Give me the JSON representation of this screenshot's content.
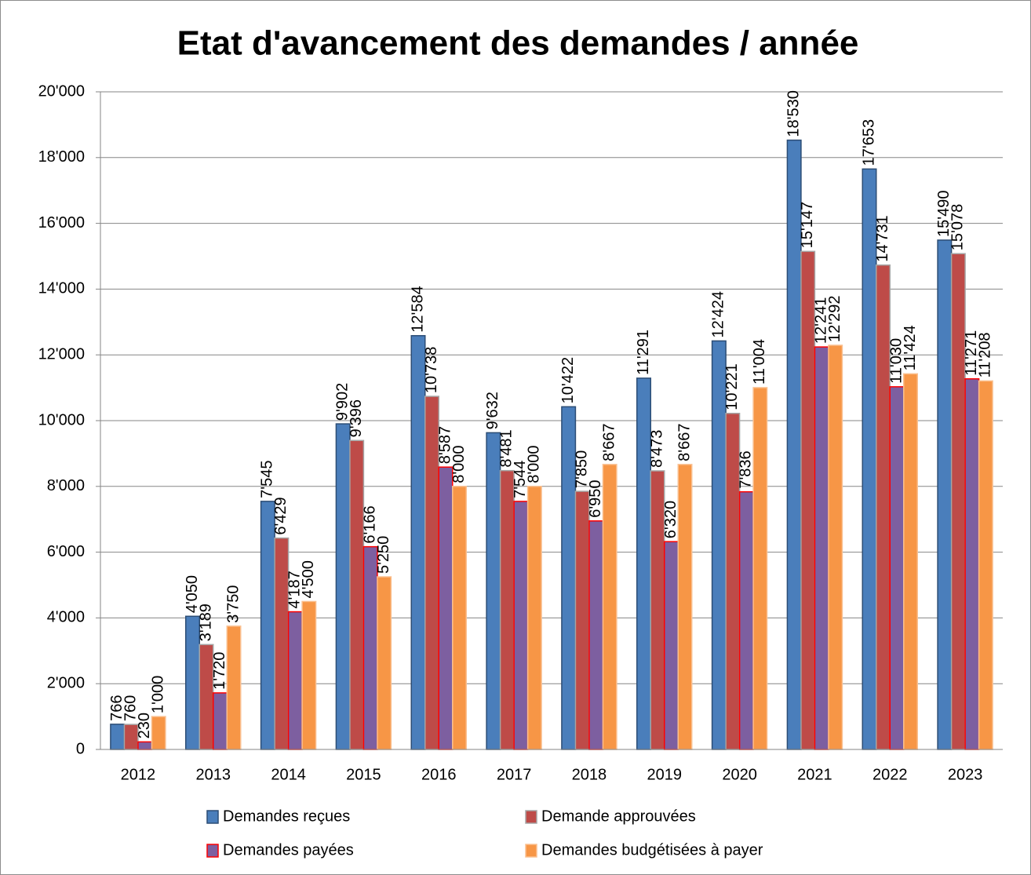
{
  "chart_data": {
    "type": "bar",
    "title": "Etat d'avancement des demandes / année",
    "categories": [
      "2012",
      "2013",
      "2014",
      "2015",
      "2016",
      "2017",
      "2018",
      "2019",
      "2020",
      "2021",
      "2022",
      "2023"
    ],
    "series": [
      {
        "name": "Demandes reçues",
        "color": "#4a7ebb",
        "border": "#2c4d75",
        "values": [
          766,
          4050,
          7545,
          9902,
          12584,
          9632,
          10422,
          11291,
          12424,
          18530,
          17653,
          15490
        ],
        "value_labels": [
          "766",
          "4'050",
          "7'545",
          "9'902",
          "12'584",
          "9'632",
          "10'422",
          "11'291",
          "12'424",
          "18'530",
          "17'653",
          "15'490"
        ]
      },
      {
        "name": "Demande approuvées",
        "color": "#be4b48",
        "border": "#a5a5a5",
        "values": [
          760,
          3189,
          6429,
          9396,
          10738,
          8481,
          7850,
          8473,
          10221,
          15147,
          14731,
          15078
        ],
        "value_labels": [
          "760",
          "3'189",
          "6'429",
          "9'396",
          "10'738",
          "8'481",
          "7'850",
          "8'473",
          "10'221",
          "15'147",
          "14'731",
          "15'078"
        ]
      },
      {
        "name": "Demandes payées",
        "color": "#7d5fa0",
        "border": "#ff0000",
        "values": [
          230,
          1720,
          4187,
          6166,
          8587,
          7544,
          6950,
          6320,
          7836,
          12241,
          11030,
          11271
        ],
        "value_labels": [
          "230",
          "1'720",
          "4'187",
          "6'166",
          "8'587",
          "7'544",
          "6'950",
          "6'320",
          "7'836",
          "12'241",
          "11'030",
          "11'271"
        ]
      },
      {
        "name": "Demandes budgétisées à payer",
        "color": "#f79646",
        "border": "#fac090",
        "values": [
          1000,
          3750,
          4500,
          5250,
          8000,
          8000,
          8667,
          8667,
          11004,
          12292,
          11424,
          11208
        ],
        "value_labels": [
          "1'000",
          "3'750",
          "4'500",
          "5'250",
          "8'000",
          "8'000",
          "8'667",
          "8'667",
          "11'004",
          "12'292",
          "11'424",
          "11'208"
        ]
      }
    ],
    "ylim": [
      0,
      20000
    ],
    "yticks": [
      0,
      {
        "value": 2000,
        "label": "2'000"
      },
      {
        "value": 4000,
        "label": "4'000"
      },
      {
        "value": 6000,
        "label": "6'000"
      },
      {
        "value": 8000,
        "label": "8'000"
      },
      {
        "value": 10000,
        "label": "10'000"
      },
      {
        "value": 12000,
        "label": "12'000"
      },
      {
        "value": 14000,
        "label": "14'000"
      },
      {
        "value": 16000,
        "label": "16'000"
      },
      {
        "value": 18000,
        "label": "18'000"
      },
      {
        "value": 20000,
        "label": "20'000"
      }
    ],
    "grid": true,
    "legend": "bottom"
  }
}
